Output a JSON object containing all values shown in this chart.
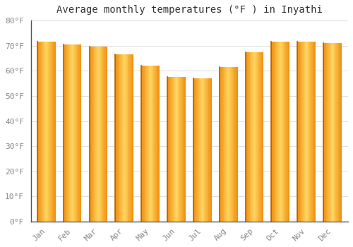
{
  "title": "Average monthly temperatures (°F ) in Inyathi",
  "months": [
    "Jan",
    "Feb",
    "Mar",
    "Apr",
    "May",
    "Jun",
    "Jul",
    "Aug",
    "Sep",
    "Oct",
    "Nov",
    "Dec"
  ],
  "values": [
    71.5,
    70.5,
    69.5,
    66.5,
    62.0,
    57.5,
    57.0,
    61.5,
    67.5,
    71.5,
    71.5,
    71.0
  ],
  "ylim": [
    0,
    80
  ],
  "yticks": [
    0,
    10,
    20,
    30,
    40,
    50,
    60,
    70,
    80
  ],
  "ytick_labels": [
    "0°F",
    "10°F",
    "20°F",
    "30°F",
    "40°F",
    "50°F",
    "60°F",
    "70°F",
    "80°F"
  ],
  "bar_color_center": "#FFD060",
  "bar_color_edge": "#F09010",
  "bar_border_color": "#B06000",
  "background_color": "#FFFFFF",
  "plot_bg_color": "#FFFFFF",
  "grid_color": "#DDDDDD",
  "title_fontsize": 10,
  "tick_fontsize": 8,
  "tick_color": "#888888",
  "title_color": "#333333"
}
